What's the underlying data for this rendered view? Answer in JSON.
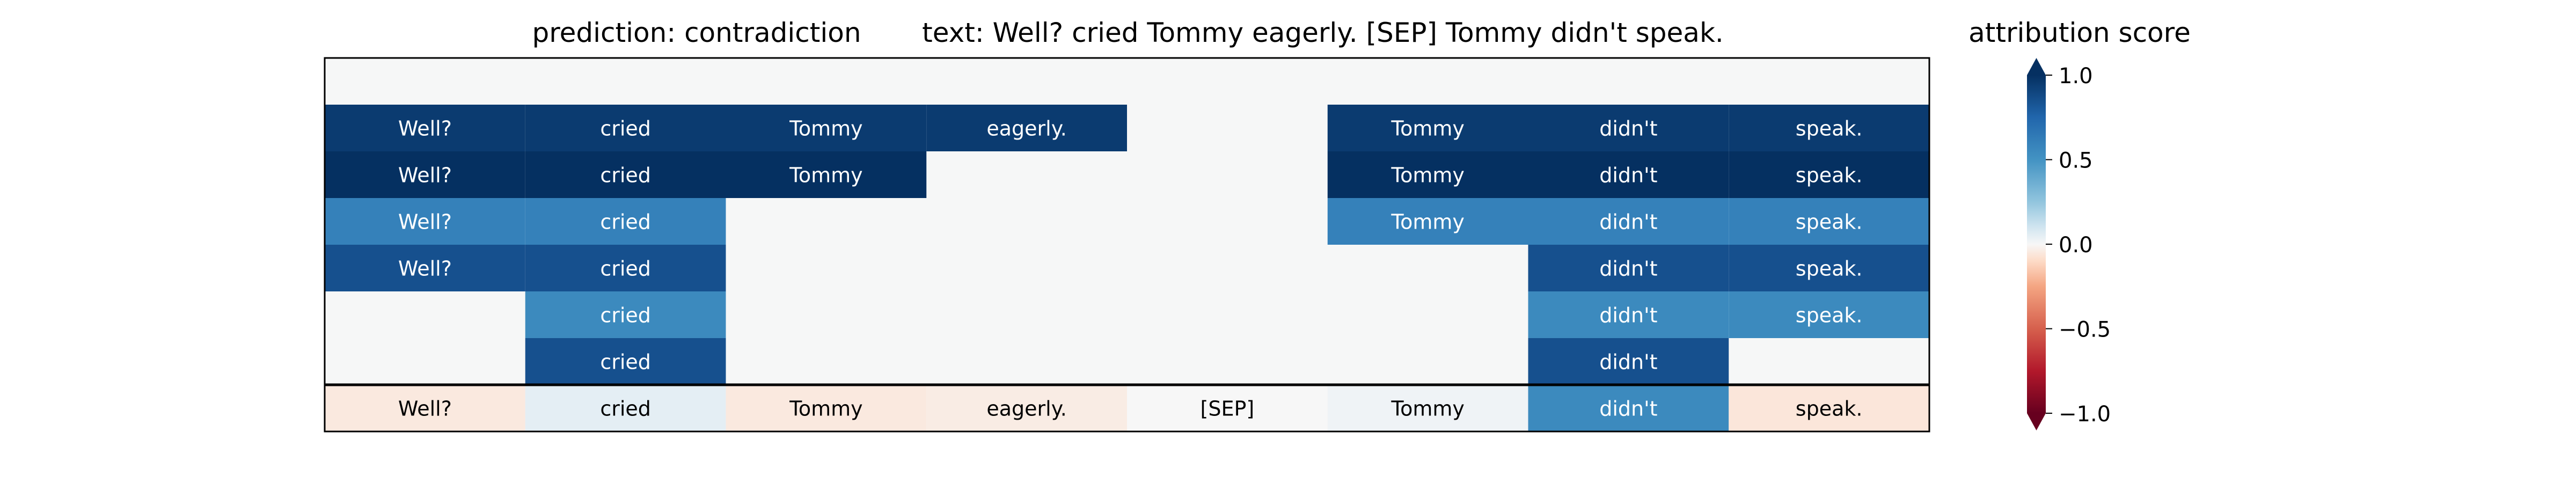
{
  "chart_data": {
    "type": "heatmap",
    "title_left": "prediction:  contradiction",
    "title_right": "text:  Well? cried Tommy eagerly. [SEP] Tommy didn't speak.",
    "tokens": [
      "Well?",
      "cried",
      "Tommy",
      "eagerly.",
      "[SEP]",
      "Tommy",
      "didn't",
      "speak."
    ],
    "rows": [
      [
        null,
        null,
        null,
        null,
        null,
        null,
        null,
        null
      ],
      [
        0.95,
        0.95,
        0.95,
        0.95,
        null,
        0.95,
        0.95,
        0.95
      ],
      [
        1.0,
        1.0,
        1.0,
        null,
        null,
        1.0,
        1.0,
        1.0
      ],
      [
        0.6,
        0.6,
        null,
        null,
        null,
        0.6,
        0.6,
        0.6
      ],
      [
        0.85,
        0.85,
        null,
        null,
        null,
        null,
        0.85,
        0.85
      ],
      [
        null,
        0.55,
        null,
        null,
        null,
        null,
        0.55,
        0.55
      ],
      [
        null,
        0.85,
        null,
        null,
        null,
        null,
        0.85,
        null
      ]
    ],
    "bottom_row": [
      -0.05,
      0.05,
      -0.05,
      -0.04,
      0.0,
      0.02,
      0.55,
      -0.06
    ],
    "colorbar": {
      "label": "attribution score",
      "range": [
        -1.0,
        1.0
      ],
      "ticks": [
        1.0,
        0.5,
        0.0,
        -0.5,
        -1.0
      ],
      "tick_labels": [
        "1.0",
        "0.5",
        "0.0",
        "−0.5",
        "−1.0"
      ],
      "colormap": "RdBu"
    },
    "empty_cell_color": "#f6f7f7"
  }
}
